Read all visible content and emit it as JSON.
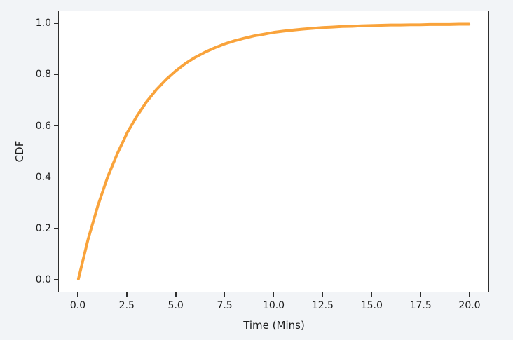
{
  "figure": {
    "background": "#f2f4f7",
    "plot_background": "#ffffff",
    "spine_color": "#2e2e2e",
    "text_color": "#1c1c1c"
  },
  "chart_data": {
    "type": "line",
    "title": "",
    "xlabel": "Time (Mins)",
    "ylabel": "CDF",
    "xlim": [
      -1,
      21
    ],
    "ylim": [
      -0.05,
      1.05
    ],
    "grid": false,
    "legend": "none",
    "x_tick_values": [
      0,
      2.5,
      5,
      7.5,
      10,
      12.5,
      15,
      17.5,
      20
    ],
    "x_tick_labels": [
      "0.0",
      "2.5",
      "5.0",
      "7.5",
      "10.0",
      "12.5",
      "15.0",
      "17.5",
      "20.0"
    ],
    "y_tick_values": [
      0,
      0.2,
      0.4,
      0.6,
      0.8,
      1.0
    ],
    "y_tick_labels": [
      "0.0",
      "0.2",
      "0.4",
      "0.6",
      "0.8",
      "1.0"
    ],
    "series": [
      {
        "name": "CDF",
        "color": "#F9A33B",
        "line_width": 4,
        "x": [
          0,
          0.5,
          1,
          1.5,
          2,
          2.5,
          3,
          3.5,
          4,
          4.5,
          5,
          5.5,
          6,
          6.5,
          7,
          7.5,
          8,
          8.5,
          9,
          9.5,
          10,
          10.5,
          11,
          11.5,
          12,
          12.5,
          13,
          13.5,
          14,
          14.5,
          15,
          15.5,
          16,
          16.5,
          17,
          17.5,
          18,
          18.5,
          19,
          19.5,
          20
        ],
        "y": [
          0,
          0.156,
          0.288,
          0.4,
          0.493,
          0.573,
          0.639,
          0.696,
          0.743,
          0.783,
          0.817,
          0.846,
          0.87,
          0.89,
          0.907,
          0.922,
          0.934,
          0.944,
          0.953,
          0.96,
          0.967,
          0.972,
          0.976,
          0.98,
          0.983,
          0.986,
          0.988,
          0.99,
          0.991,
          0.993,
          0.994,
          0.995,
          0.996,
          0.996,
          0.997,
          0.997,
          0.998,
          0.998,
          0.998,
          0.999,
          0.999
        ]
      }
    ]
  }
}
